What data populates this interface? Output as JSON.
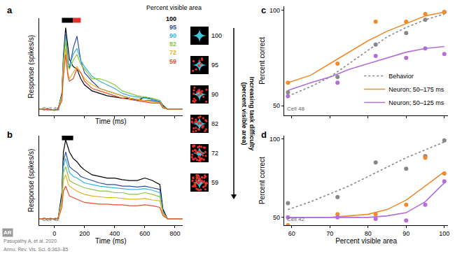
{
  "chart_data": [
    {
      "type": "line",
      "label": "a",
      "note": "Cell 48",
      "x_label": "Time (ms)",
      "y_label": "Response (spikes/s)",
      "x": [
        -100,
        -50,
        0,
        25,
        50,
        60,
        75,
        90,
        100,
        125,
        150,
        175,
        200,
        250,
        300,
        350,
        400,
        450,
        500,
        550,
        600,
        650,
        700,
        720,
        750,
        800,
        850
      ],
      "xlim": [
        -100,
        850
      ],
      "xticks": [
        0,
        200,
        400,
        600,
        800
      ],
      "ylim": [
        0,
        80
      ],
      "tick_labels": false,
      "legend": "upper right",
      "legend_title": "Percent visible area",
      "windows": [
        {
          "start": 50,
          "end": 125,
          "color": "#000000"
        },
        {
          "start": 125,
          "end": 175,
          "color": "#e8302a"
        }
      ],
      "series": [
        {
          "name": "100",
          "color": "#000000",
          "values": [
            5,
            5,
            4,
            5,
            18,
            48,
            72,
            55,
            46,
            40,
            38,
            30,
            25,
            20,
            18,
            16,
            15,
            14,
            14,
            12,
            15,
            13,
            12,
            8,
            5,
            5,
            5
          ]
        },
        {
          "name": "95",
          "color": "#2e4fa3",
          "values": [
            5,
            5,
            4,
            5,
            17,
            45,
            68,
            46,
            38,
            55,
            65,
            45,
            35,
            28,
            22,
            20,
            18,
            16,
            14,
            13,
            12,
            12,
            11,
            7,
            5,
            5,
            5
          ]
        },
        {
          "name": "90",
          "color": "#35b6e0",
          "values": [
            5,
            5,
            4,
            5,
            16,
            44,
            65,
            44,
            40,
            50,
            55,
            45,
            40,
            32,
            28,
            25,
            22,
            18,
            16,
            15,
            14,
            13,
            12,
            7,
            5,
            5,
            5
          ]
        },
        {
          "name": "82",
          "color": "#8dc63f",
          "values": [
            5,
            5,
            4,
            5,
            16,
            42,
            62,
            40,
            38,
            45,
            50,
            42,
            38,
            30,
            30,
            28,
            25,
            20,
            18,
            16,
            15,
            14,
            12,
            7,
            5,
            5,
            5
          ]
        },
        {
          "name": "72",
          "color": "#e6b422",
          "values": [
            5,
            5,
            4,
            5,
            14,
            38,
            55,
            35,
            30,
            35,
            40,
            35,
            30,
            25,
            22,
            20,
            18,
            16,
            14,
            13,
            12,
            11,
            10,
            6,
            5,
            5,
            5
          ]
        },
        {
          "name": "59",
          "color": "#e8502a",
          "values": [
            5,
            5,
            4,
            5,
            12,
            32,
            50,
            32,
            28,
            30,
            38,
            35,
            28,
            22,
            20,
            18,
            16,
            14,
            13,
            12,
            11,
            10,
            10,
            6,
            5,
            5,
            5
          ]
        }
      ]
    },
    {
      "type": "line",
      "label": "b",
      "note": "Cell 42",
      "x_label": "Time (ms)",
      "y_label": "Response (spikes/s)",
      "x": [
        -100,
        -50,
        0,
        25,
        50,
        60,
        75,
        90,
        100,
        125,
        150,
        175,
        200,
        250,
        300,
        350,
        400,
        450,
        500,
        550,
        600,
        650,
        700,
        720,
        750,
        800,
        850
      ],
      "xlim": [
        -100,
        850
      ],
      "xticks": [
        0,
        200,
        400,
        600,
        800
      ],
      "ylim": [
        0,
        110
      ],
      "tick_labels": "x",
      "windows": [
        {
          "start": 50,
          "end": 125,
          "color": "#000000"
        }
      ],
      "series": [
        {
          "color": "#000000",
          "values": [
            8,
            8,
            8,
            8,
            40,
            90,
            105,
            95,
            90,
            82,
            78,
            72,
            68,
            62,
            60,
            58,
            58,
            56,
            55,
            55,
            58,
            55,
            50,
            20,
            8,
            8,
            8
          ]
        },
        {
          "color": "#2e4fa3",
          "values": [
            8,
            8,
            8,
            8,
            35,
            78,
            90,
            80,
            72,
            68,
            65,
            60,
            58,
            55,
            52,
            50,
            50,
            48,
            48,
            47,
            48,
            46,
            44,
            18,
            8,
            8,
            8
          ]
        },
        {
          "color": "#35b6e0",
          "values": [
            8,
            8,
            8,
            8,
            33,
            72,
            82,
            72,
            65,
            60,
            58,
            55,
            52,
            50,
            48,
            47,
            46,
            45,
            44,
            44,
            45,
            43,
            40,
            16,
            8,
            8,
            8
          ]
        },
        {
          "color": "#8dc63f",
          "values": [
            8,
            8,
            8,
            8,
            30,
            65,
            72,
            62,
            55,
            52,
            50,
            48,
            46,
            44,
            42,
            42,
            40,
            40,
            38,
            38,
            40,
            38,
            35,
            15,
            8,
            8,
            8
          ]
        },
        {
          "color": "#e6b422",
          "values": [
            8,
            8,
            8,
            8,
            28,
            55,
            62,
            52,
            48,
            45,
            42,
            40,
            38,
            36,
            35,
            34,
            34,
            33,
            32,
            32,
            33,
            31,
            30,
            14,
            8,
            8,
            8
          ]
        },
        {
          "color": "#e8502a",
          "values": [
            8,
            8,
            8,
            8,
            22,
            42,
            48,
            40,
            36,
            34,
            32,
            30,
            28,
            27,
            26,
            26,
            25,
            25,
            24,
            24,
            25,
            24,
            22,
            12,
            8,
            8,
            8
          ]
        }
      ]
    },
    {
      "type": "scatter",
      "label": "c",
      "note": "Cell 48",
      "y_label": "Percent correct",
      "xlim": [
        58,
        101
      ],
      "xticks": [
        60,
        70,
        80,
        90,
        100
      ],
      "ylim": [
        45,
        102
      ],
      "yticks": [
        50,
        100
      ],
      "tick_labels": "y",
      "legend": "lower right",
      "series": [
        {
          "name": "Behavior",
          "color": "#888888",
          "line_style": "dotted",
          "x": [
            59,
            65,
            70,
            75,
            80,
            85,
            90,
            95,
            100
          ],
          "values": [
            55,
            60,
            65,
            72,
            79,
            86,
            91,
            95,
            98
          ]
        },
        {
          "name": "Neuron; 50–175 ms",
          "color": "#f08a2c",
          "x": [
            59,
            65,
            70,
            75,
            80,
            85,
            90,
            95,
            100
          ],
          "values": [
            62,
            66,
            72,
            78,
            84,
            89,
            93,
            97,
            99
          ]
        },
        {
          "name": "Neuron; 50–125 ms",
          "color": "#b36fd6",
          "x": [
            59,
            65,
            70,
            75,
            80,
            85,
            90,
            95,
            100
          ],
          "values": [
            58,
            62,
            65,
            69,
            72,
            75,
            78,
            80,
            81
          ]
        }
      ],
      "points": [
        {
          "color": "#888888",
          "x": [
            59,
            72,
            82,
            90,
            95,
            100
          ],
          "values": [
            57,
            65,
            82,
            88,
            95,
            99
          ]
        },
        {
          "color": "#f08a2c",
          "x": [
            59,
            72,
            82,
            90,
            95,
            100
          ],
          "values": [
            62,
            72,
            94,
            94,
            98,
            99
          ]
        },
        {
          "color": "#b36fd6",
          "x": [
            59,
            72,
            82,
            90,
            95,
            100
          ],
          "values": [
            55,
            62,
            76,
            75,
            80,
            77
          ]
        }
      ]
    },
    {
      "type": "scatter",
      "label": "d",
      "note": "Cell 42",
      "x_label": "Percent visible area",
      "y_label": "Percent correct",
      "xlim": [
        58,
        101
      ],
      "xticks": [
        60,
        70,
        80,
        90,
        100
      ],
      "ylim": [
        45,
        102
      ],
      "yticks": [
        50,
        100
      ],
      "series": [
        {
          "color": "#888888",
          "line_style": "dotted",
          "x": [
            59,
            65,
            70,
            75,
            80,
            85,
            90,
            95,
            100
          ],
          "values": [
            55,
            60,
            65,
            70,
            76,
            82,
            88,
            93,
            98
          ]
        },
        {
          "color": "#f08a2c",
          "x": [
            59,
            65,
            70,
            75,
            80,
            85,
            90,
            95,
            100
          ],
          "values": [
            50,
            50,
            50,
            51,
            52,
            55,
            61,
            70,
            79
          ]
        },
        {
          "color": "#b36fd6",
          "x": [
            59,
            70,
            80,
            85,
            90,
            95,
            100
          ],
          "values": [
            50,
            50,
            50,
            51,
            53,
            60,
            72
          ]
        }
      ],
      "points": [
        {
          "color": "#888888",
          "x": [
            59,
            72,
            82,
            90,
            95,
            100
          ],
          "values": [
            59,
            63,
            85,
            81,
            89,
            99
          ]
        },
        {
          "color": "#f08a2c",
          "x": [
            59,
            72,
            82,
            90,
            95,
            100
          ],
          "values": [
            45,
            52,
            52,
            58,
            88,
            78
          ]
        },
        {
          "color": "#b36fd6",
          "x": [
            59,
            72,
            82,
            90,
            95,
            100
          ],
          "values": [
            50,
            50,
            49,
            48,
            58,
            73
          ]
        }
      ]
    }
  ],
  "stimuli": {
    "labels": [
      100,
      95,
      90,
      82,
      72,
      59
    ],
    "caption": [
      "Increasing task difficulty",
      "(percent visible area)"
    ]
  },
  "credit": [
    "Pasupathy A, et al. 2020.",
    "Annu. Rev. Vis. Sci. 6:363–85"
  ],
  "logo": "AR"
}
